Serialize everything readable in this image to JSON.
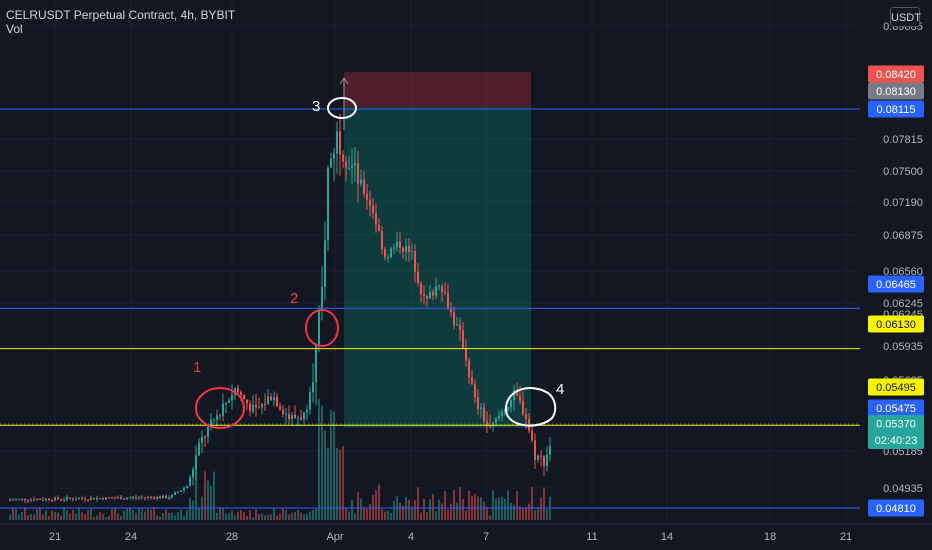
{
  "header": {
    "symbol_title": "CELRUSDT Perpetual Contract, 4h, BYBIT",
    "volume_label": "Vol"
  },
  "scale_button": "USDT",
  "colors": {
    "background": "#131722",
    "up": "#26a69a",
    "down": "#ef5350",
    "blue_line": "#2962ff",
    "yellow_line": "#f7f300",
    "stop_zone": "#5c2a33",
    "target_zone": "#1a4d43",
    "axis_text": "#b2b5be"
  },
  "chart_data": {
    "type": "candlestick",
    "x_tick_labels": [
      "21",
      "24",
      "28",
      "Apr",
      "4",
      "7",
      "11",
      "14",
      "18",
      "21"
    ],
    "y_tick_labels": [
      "0.09085",
      "0.07815",
      "0.07500",
      "0.07190",
      "0.06875",
      "0.06560",
      "0.06245",
      "0.05935",
      "0.05185",
      "0.04935"
    ],
    "partially_hidden_tick_labels": [
      "0.06245",
      "0.05685"
    ],
    "price_tags": [
      {
        "value": "0.08420",
        "bg": "#ef5350",
        "color": "#ffffff"
      },
      {
        "value": "0.08130",
        "bg": "#787b86",
        "color": "#ffffff"
      },
      {
        "value": "0.08115",
        "bg": "#2962ff",
        "color": "#ffffff"
      },
      {
        "value": "0.06465",
        "bg": "#2962ff",
        "color": "#ffffff"
      },
      {
        "value": "0.06130",
        "bg": "#f7f300",
        "color": "#131722"
      },
      {
        "value": "0.05495",
        "bg": "#f7f300",
        "color": "#131722"
      },
      {
        "value": "0.05475",
        "bg": "#2962ff",
        "color": "#ffffff"
      },
      {
        "value": "0.05370",
        "bg": "#26a69a",
        "color": "#ffffff",
        "countdown": "02:40:23"
      },
      {
        "value": "0.04810",
        "bg": "#2962ff",
        "color": "#ffffff"
      }
    ],
    "horizontal_lines": [
      {
        "price": 0.08115,
        "color": "blue"
      },
      {
        "price": 0.06465,
        "color": "blue"
      },
      {
        "price": 0.0613,
        "color": "yellow"
      },
      {
        "price": 0.05495,
        "color": "yellow"
      },
      {
        "price": 0.0481,
        "color": "blue"
      }
    ],
    "short_position": {
      "entry": 0.0813,
      "stop": 0.0842,
      "target": 0.05475
    },
    "annotations": [
      "1",
      "2",
      "3",
      "4"
    ],
    "last_price": 0.0537
  }
}
